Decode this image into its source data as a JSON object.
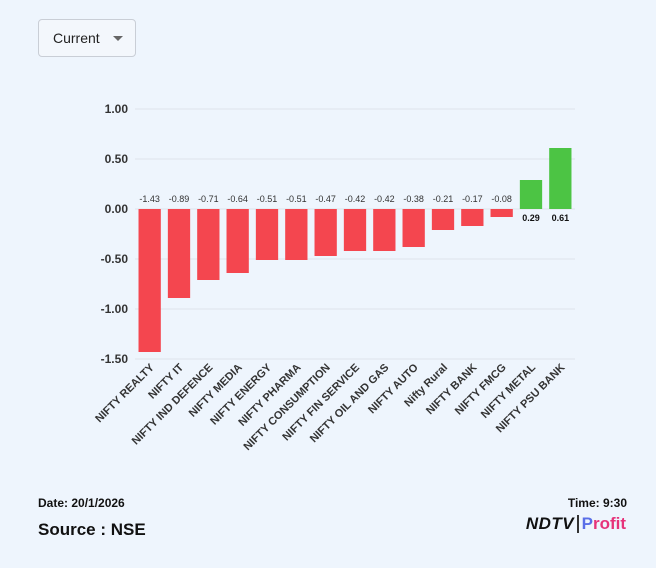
{
  "dropdown": {
    "selected": "Current"
  },
  "chart_data": {
    "type": "bar",
    "title": "",
    "xlabel": "",
    "ylabel": "",
    "categories": [
      "NIFTY REALTY",
      "NIFTY IT",
      "NIFTY IND DEFENCE",
      "NIFTY MEDIA",
      "NIFTY ENERGY",
      "NIFTY PHARMA",
      "NIFTY CONSUMPTION",
      "NIFTY FIN SERVICE",
      "NIFTY OIL AND GAS",
      "NIFTY AUTO",
      "Nifty Rural",
      "NIFTY BANK",
      "NIFTY FMCG",
      "NIFTY METAL",
      "NIFTY PSU BANK"
    ],
    "values": [
      -1.43,
      -0.89,
      -0.71,
      -0.64,
      -0.51,
      -0.51,
      -0.47,
      -0.42,
      -0.42,
      -0.38,
      -0.21,
      -0.17,
      -0.08,
      0.29,
      0.61
    ],
    "value_labels": [
      "-1.43",
      "-0.89",
      "-0.71",
      "-0.64",
      "-0.51",
      "-0.51",
      "-0.47",
      "-0.42",
      "-0.42",
      "-0.38",
      "-0.21",
      "-0.17",
      "-0.08",
      "0.29",
      "0.61"
    ],
    "yticks": [
      "1.00",
      "0.50",
      "0.00",
      "-0.50",
      "-1.00",
      "-1.50"
    ],
    "ytick_values": [
      1.0,
      0.5,
      0.0,
      -0.5,
      -1.0,
      -1.5
    ],
    "ylim": [
      -1.5,
      1.0
    ],
    "grid": true,
    "colors": {
      "negative": "#f4464f",
      "positive": "#4cc444"
    }
  },
  "footer": {
    "date": "Date: 20/1/2026",
    "time": "Time: 9:30",
    "source": "Source : NSE"
  },
  "logo": {
    "brand": "NDTV",
    "product_p": "P",
    "product_rest": "rofit"
  }
}
